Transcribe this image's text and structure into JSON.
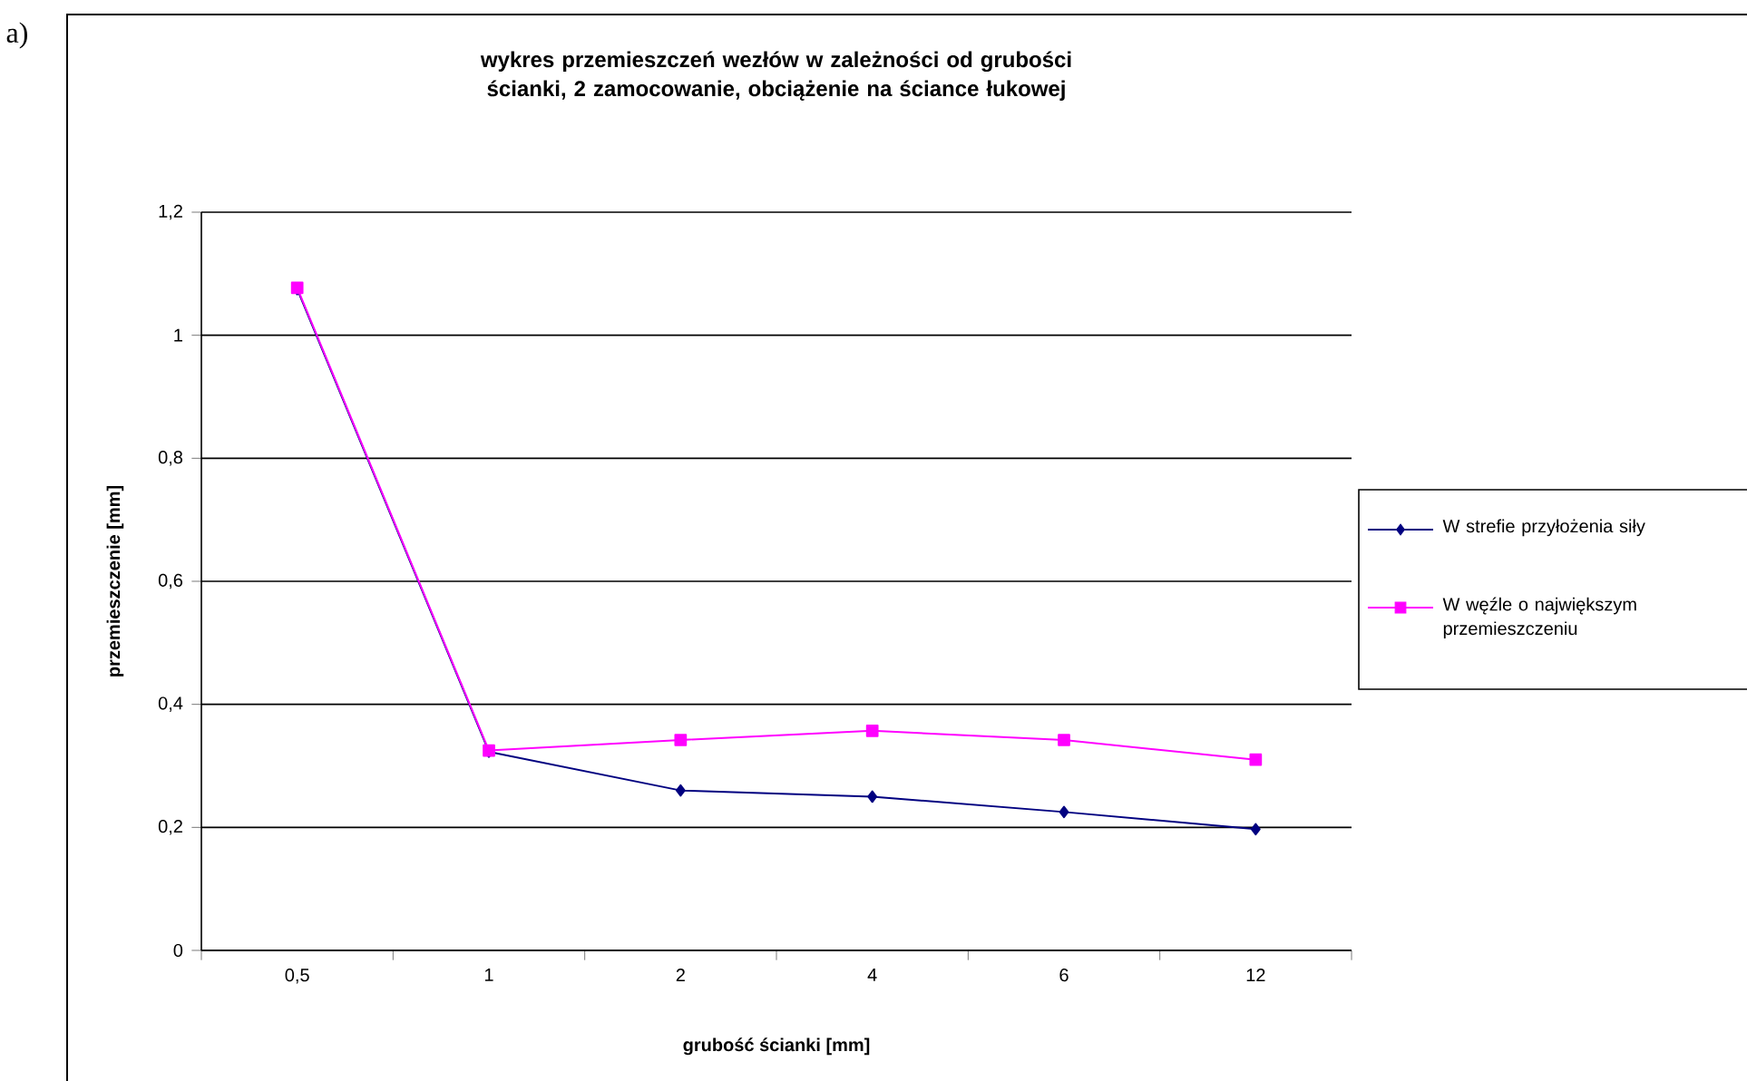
{
  "chart_data": {
    "type": "line",
    "title": "wykres przemieszczeń wezłów w zależności od grubości ścianki, 2 zamocowanie, obciążenie na ściance łukowej",
    "xlabel": "grubość ścianki [mm]",
    "ylabel": "przemieszczenie [mm]",
    "annotations": [
      "a)"
    ],
    "categories": [
      "0,5",
      "1",
      "2",
      "4",
      "6",
      "12"
    ],
    "series": [
      {
        "name": "W strefie przyłożenia siły",
        "color": "#000080",
        "marker": "diamond",
        "values": [
          1.075,
          0.323,
          0.26,
          0.25,
          0.225,
          0.197
        ]
      },
      {
        "name": "W węźle o największym przemieszczeniu",
        "color": "#ff00ff",
        "marker": "square",
        "values": [
          1.077,
          0.325,
          0.342,
          0.357,
          0.342,
          0.31
        ]
      }
    ],
    "ylim": [
      0,
      1.2
    ],
    "yticks": [
      0,
      {
        "value": 0.2,
        "label": "0,2"
      },
      {
        "value": 0.4,
        "label": "0,4"
      },
      {
        "value": 0.6,
        "label": "0,6"
      },
      {
        "value": 0.8,
        "label": "0,8"
      },
      1,
      {
        "value": 1.2,
        "label": "1,2"
      }
    ],
    "grid": "y",
    "legend": "right",
    "line_style": "solid"
  }
}
